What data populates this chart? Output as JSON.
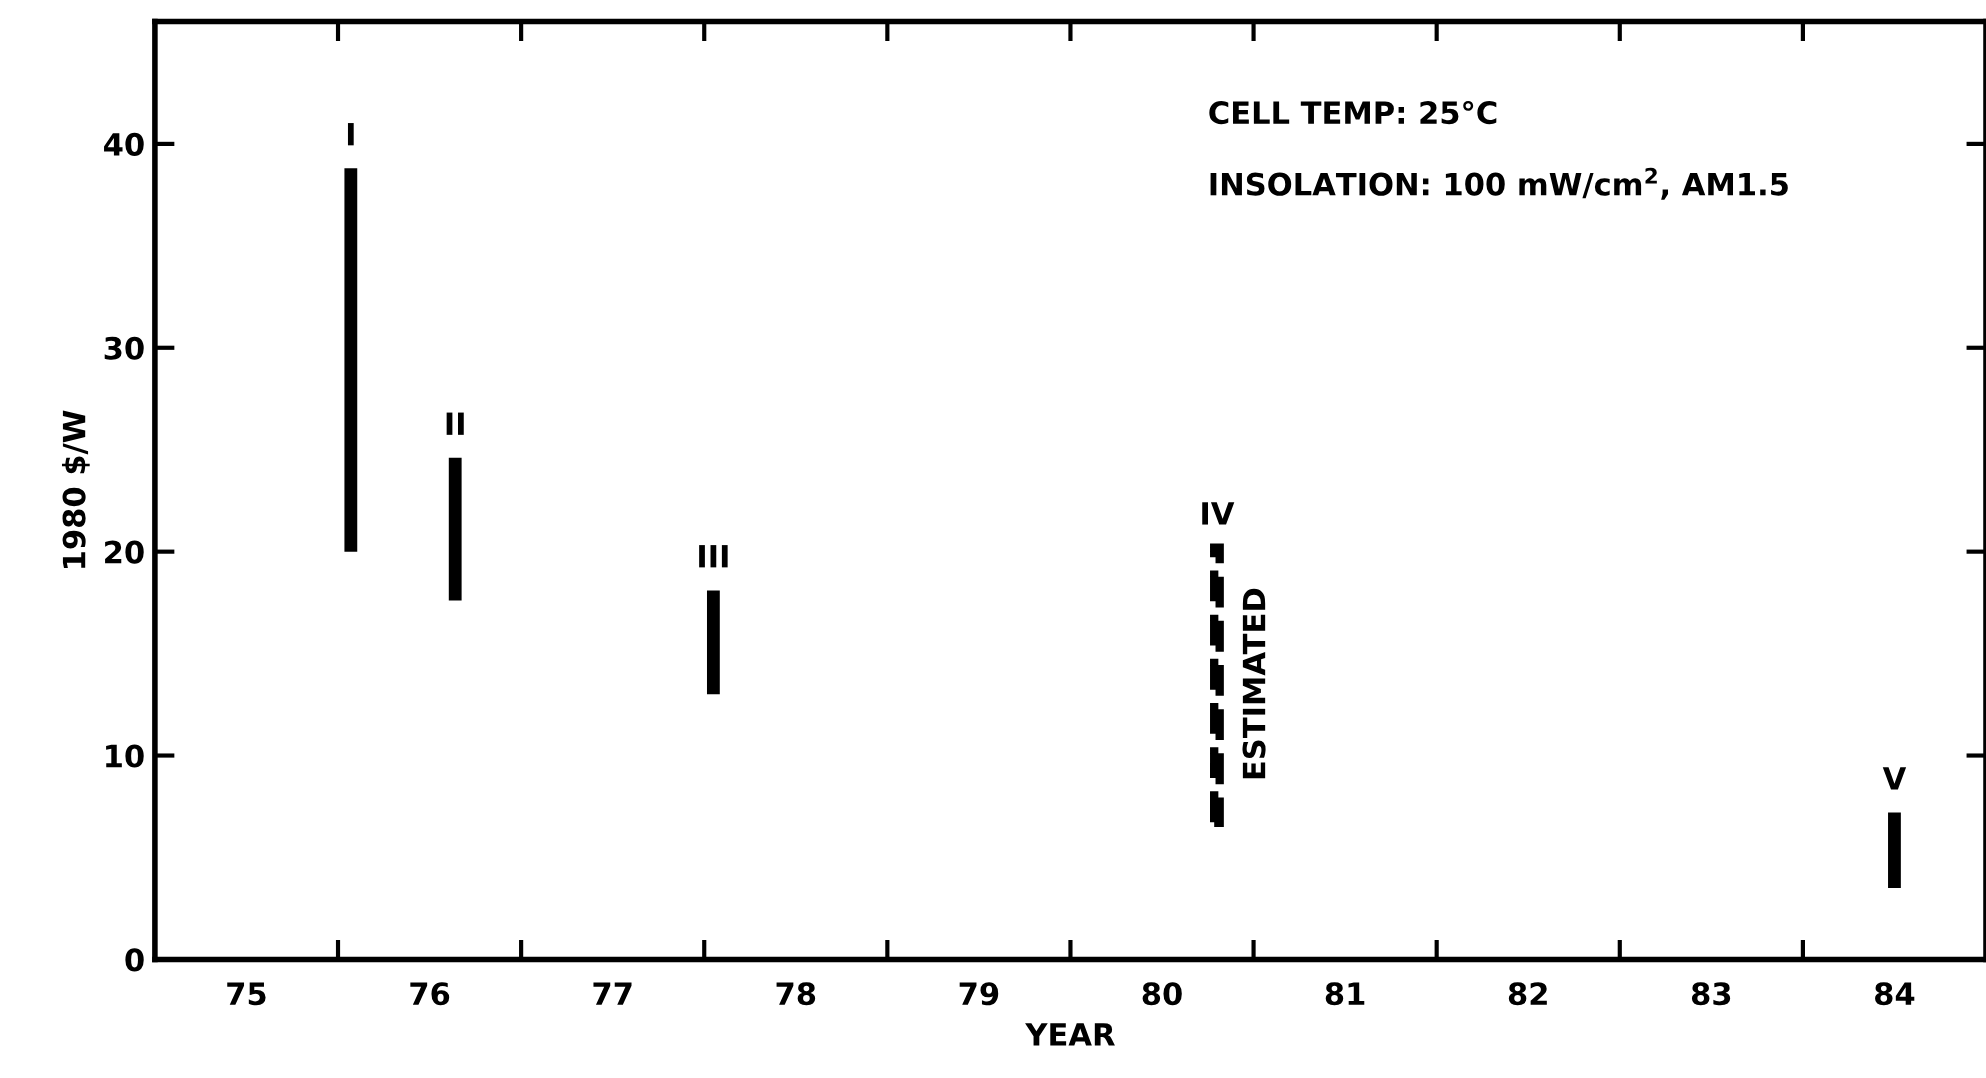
{
  "chart_data": {
    "type": "bar",
    "xlabel": "YEAR",
    "ylabel": "1980 $/W",
    "xlim": [
      75,
      85
    ],
    "ylim": [
      0,
      46
    ],
    "xticks": [
      {
        "value": 75.5,
        "label": "75"
      },
      {
        "value": 76,
        "label": null
      },
      {
        "value": 76.5,
        "label": "76"
      },
      {
        "value": 77,
        "label": null
      },
      {
        "value": 77.5,
        "label": "77"
      },
      {
        "value": 78,
        "label": null
      },
      {
        "value": 78.5,
        "label": "78"
      },
      {
        "value": 79,
        "label": null
      },
      {
        "value": 79.5,
        "label": "79"
      },
      {
        "value": 80,
        "label": null
      },
      {
        "value": 80.5,
        "label": "80"
      },
      {
        "value": 81,
        "label": null
      },
      {
        "value": 81.5,
        "label": "81"
      },
      {
        "value": 82,
        "label": null
      },
      {
        "value": 82.5,
        "label": "82"
      },
      {
        "value": 83,
        "label": null
      },
      {
        "value": 83.5,
        "label": "83"
      },
      {
        "value": 84,
        "label": null
      },
      {
        "value": 84.5,
        "label": "84"
      }
    ],
    "yticks": [
      0,
      10,
      20,
      30,
      40
    ],
    "series": [
      {
        "color": "#000000",
        "line_style": "solid",
        "x": [
          76.07,
          76.64,
          78.05,
          84.5
        ],
        "base": [
          20,
          17.6,
          13.0,
          3.5
        ],
        "values": [
          18.8,
          7.0,
          5.1,
          3.7
        ]
      },
      {
        "color": "#000000",
        "line_style": "dashed",
        "x": [
          80.8
        ],
        "base": [
          6.7
        ],
        "values": [
          13.5
        ]
      }
    ],
    "annotations": [
      {
        "text": "I",
        "x": 76.07,
        "y": 38.8
      },
      {
        "text": "II",
        "x": 76.64,
        "y": 24.6
      },
      {
        "text": "III",
        "x": 78.05,
        "y": 18.1
      },
      {
        "text": "IV",
        "x": 80.8,
        "y": 20.2
      },
      {
        "text": "V",
        "x": 84.5,
        "y": 7.2
      },
      {
        "text": "ESTIMATED",
        "x": 80.8,
        "y": 13.5
      },
      "CELL TEMP: 25°C",
      "INSOLATION: 100 mW/cm$^{2}$, AM1.5"
    ]
  }
}
